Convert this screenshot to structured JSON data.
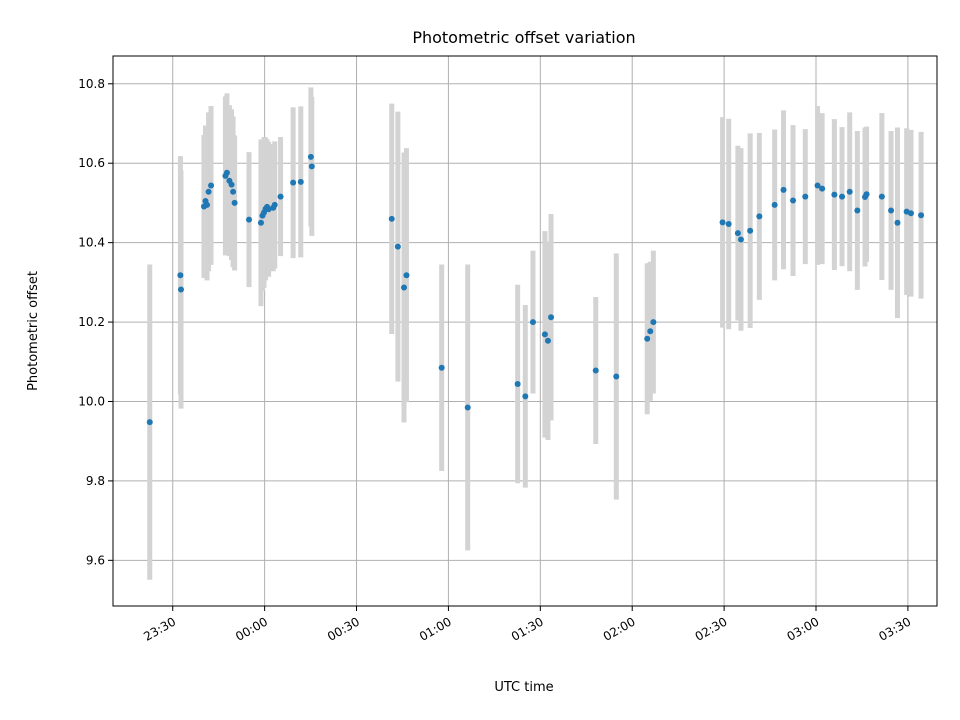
{
  "chart_data": {
    "type": "scatter",
    "title": "Photometric offset variation",
    "xlabel": "UTC time",
    "ylabel": "Photometric offset",
    "x_unit": "minutes relative to 00:00 UTC",
    "xlim": [
      -49.5,
      219.5
    ],
    "ylim": [
      9.485,
      10.87
    ],
    "x_ticks": [
      -30,
      0,
      30,
      60,
      90,
      120,
      150,
      180,
      210
    ],
    "x_tick_labels": [
      "23:30",
      "00:00",
      "00:30",
      "01:00",
      "01:30",
      "02:00",
      "02:30",
      "03:00",
      "03:30"
    ],
    "y_ticks": [
      9.6,
      9.8,
      10.0,
      10.2,
      10.4,
      10.6,
      10.8
    ],
    "y_tick_labels": [
      "9.6",
      "9.8",
      "10.0",
      "10.2",
      "10.4",
      "10.6",
      "10.8"
    ],
    "grid": true,
    "colors": {
      "points": "#1f77b4",
      "error_bars": "#d3d3d3",
      "grid": "#b0b0b0"
    },
    "series": [
      {
        "x": [
          -37.5,
          -27.5,
          -27.3,
          -19.8,
          -19.3,
          -18.8,
          -18.3,
          -17.5,
          -12.8,
          -12.3,
          -11.5,
          -10.8,
          -10.3,
          -9.8,
          -5.1,
          -1.2,
          -0.7,
          -0.2,
          0.3,
          0.8,
          1.3,
          2.8,
          3.3,
          5.2,
          9.3,
          11.8,
          15.1,
          15.4,
          41.5,
          43.5,
          45.5,
          46.3,
          57.8,
          66.3,
          82.6,
          85.1,
          87.6,
          91.5,
          92.5,
          93.5,
          108.1,
          114.8,
          124.9,
          125.9,
          126.9,
          149.5,
          151.5,
          154.5,
          155.5,
          158.5,
          161.5,
          166.5,
          169.4,
          172.5,
          176.5,
          180.5,
          182.0,
          186.0,
          188.5,
          191.0,
          193.5,
          196.0,
          196.5,
          201.5,
          204.5,
          206.6,
          209.6,
          211.0,
          214.3
        ],
        "y": [
          9.948,
          10.318,
          10.282,
          10.491,
          10.505,
          10.495,
          10.528,
          10.544,
          10.568,
          10.576,
          10.556,
          10.546,
          10.528,
          10.5,
          10.458,
          10.45,
          10.468,
          10.476,
          10.485,
          10.49,
          10.484,
          10.488,
          10.495,
          10.516,
          10.551,
          10.553,
          10.616,
          10.592,
          10.46,
          10.39,
          10.287,
          10.318,
          10.085,
          9.985,
          10.044,
          10.013,
          10.2,
          10.169,
          10.153,
          10.212,
          10.078,
          10.063,
          10.158,
          10.177,
          10.2,
          10.451,
          10.447,
          10.424,
          10.408,
          10.43,
          10.466,
          10.495,
          10.533,
          10.506,
          10.516,
          10.544,
          10.536,
          10.521,
          10.516,
          10.528,
          10.481,
          10.515,
          10.522,
          10.516,
          10.481,
          10.45,
          10.478,
          10.474,
          10.469
        ],
        "yerr": [
          0.397,
          0.3,
          0.3,
          0.18,
          0.19,
          0.19,
          0.2,
          0.2,
          0.2,
          0.2,
          0.19,
          0.19,
          0.19,
          0.17,
          0.17,
          0.21,
          0.19,
          0.19,
          0.18,
          0.17,
          0.17,
          0.16,
          0.16,
          0.15,
          0.19,
          0.19,
          0.175,
          0.175,
          0.29,
          0.34,
          0.34,
          0.32,
          0.26,
          0.36,
          0.25,
          0.23,
          0.18,
          0.26,
          0.25,
          0.26,
          0.185,
          0.31,
          0.19,
          0.175,
          0.18,
          0.265,
          0.265,
          0.22,
          0.23,
          0.245,
          0.21,
          0.19,
          0.2,
          0.19,
          0.17,
          0.2,
          0.19,
          0.19,
          0.175,
          0.2,
          0.2,
          0.175,
          0.17,
          0.21,
          0.2,
          0.24,
          0.21,
          0.21,
          0.21
        ]
      }
    ]
  }
}
